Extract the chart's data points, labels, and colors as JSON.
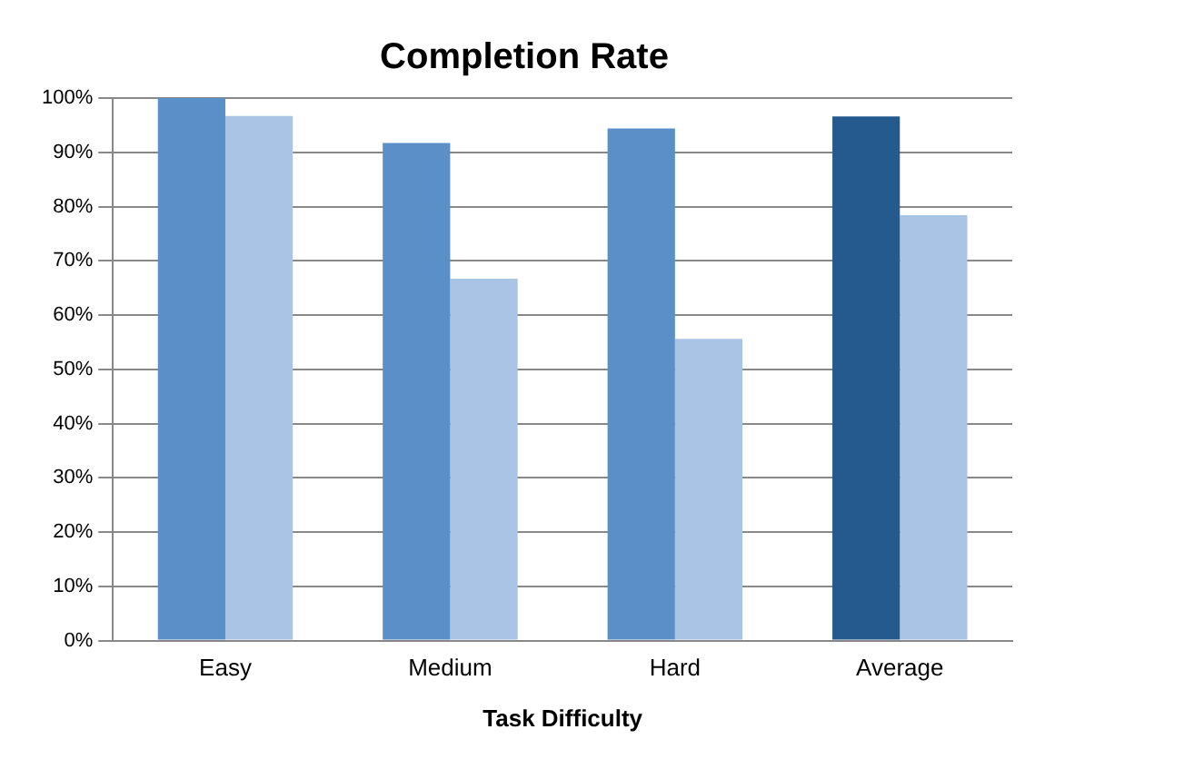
{
  "chart_data": {
    "type": "bar",
    "title": "Completion Rate",
    "xlabel": "Task Difficulty",
    "categories": [
      "Easy",
      "Medium",
      "Hard",
      "Average"
    ],
    "series": [
      {
        "colors": [
          "#5b8fc7",
          "#5b8fc7",
          "#5b8fc7",
          "#255a8e"
        ],
        "values": [
          100,
          91.7,
          94.4,
          96.6
        ]
      },
      {
        "color": "#aac4e6",
        "values": [
          96.7,
          66.7,
          55.6,
          78.4
        ]
      }
    ],
    "ylim": [
      0,
      100
    ],
    "yticks": [
      {
        "value": 0,
        "label": "0%"
      },
      {
        "value": 10,
        "label": "10%"
      },
      {
        "value": 20,
        "label": "20%"
      },
      {
        "value": 30,
        "label": "30%"
      },
      {
        "value": 40,
        "label": "40%"
      },
      {
        "value": 50,
        "label": "50%"
      },
      {
        "value": 60,
        "label": "60%"
      },
      {
        "value": 70,
        "label": "70%"
      },
      {
        "value": 80,
        "label": "80%"
      },
      {
        "value": 90,
        "label": "90%"
      },
      {
        "value": 100,
        "label": "100%"
      }
    ],
    "grid": "y",
    "legend": false
  }
}
